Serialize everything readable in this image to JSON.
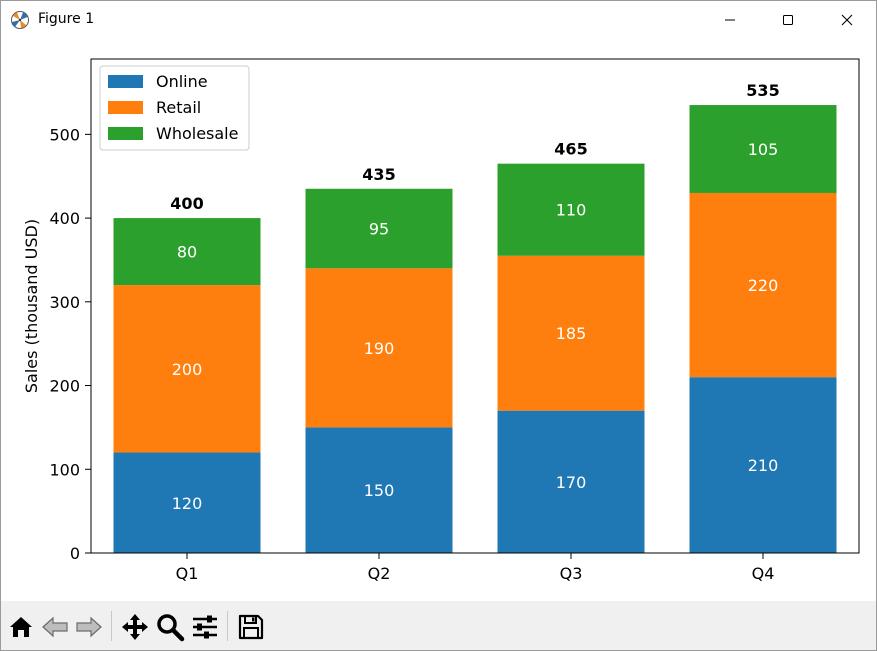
{
  "window": {
    "title": "Figure 1"
  },
  "toolbar": {
    "tools": [
      {
        "name": "home-icon"
      },
      {
        "name": "back-arrow-icon"
      },
      {
        "name": "forward-arrow-icon"
      },
      {
        "name": "pan-icon"
      },
      {
        "name": "zoom-icon"
      },
      {
        "name": "configure-subplots-icon"
      },
      {
        "name": "save-icon"
      }
    ]
  },
  "chart_data": {
    "type": "bar",
    "stacked": true,
    "categories": [
      "Q1",
      "Q2",
      "Q3",
      "Q4"
    ],
    "series": [
      {
        "name": "Online",
        "values": [
          120,
          150,
          170,
          210
        ],
        "color": "#1f77b4"
      },
      {
        "name": "Retail",
        "values": [
          200,
          190,
          185,
          220
        ],
        "color": "#ff7f0e"
      },
      {
        "name": "Wholesale",
        "values": [
          80,
          95,
          110,
          105
        ],
        "color": "#2ca02c"
      }
    ],
    "totals": [
      400,
      435,
      465,
      535
    ],
    "ylabel": "Sales (thousand USD)",
    "xlabel": "",
    "ylim": [
      0,
      590
    ],
    "yticks": [
      0,
      100,
      200,
      300,
      400,
      500
    ],
    "legend": "upper left",
    "grid": false
  }
}
